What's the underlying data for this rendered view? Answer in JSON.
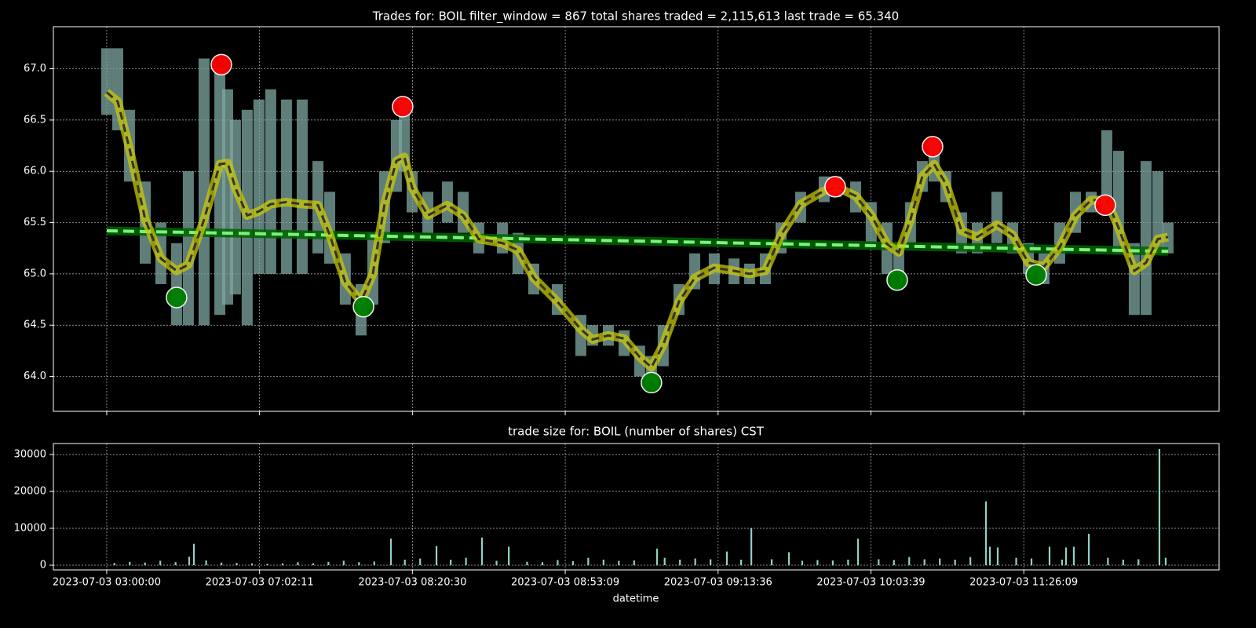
{
  "chart_data": [
    {
      "type": "line",
      "title": "Trades for: BOIL filter_window = 867 total shares traded = 2,115,613 last trade = 65.340",
      "xlim": [
        -349,
        7278
      ],
      "ylim": [
        63.66,
        67.41
      ],
      "yticks": [
        {
          "value": 64,
          "label": "64.0"
        },
        {
          "value": 64.5,
          "label": "64.5"
        },
        {
          "value": 65,
          "label": "65.0"
        },
        {
          "value": 65.5,
          "label": "65.5"
        },
        {
          "value": 66,
          "label": "66.0"
        },
        {
          "value": 66.5,
          "label": "66.5"
        },
        {
          "value": 67,
          "label": "67.0"
        }
      ],
      "grid": true,
      "sharex": true,
      "x": [
        0,
        72,
        149,
        252,
        354,
        457,
        534,
        637,
        740,
        791,
        842,
        919,
        996,
        1073,
        1176,
        1279,
        1382,
        1459,
        1561,
        1664,
        1741,
        1818,
        1895,
        1947,
        1998,
        2101,
        2229,
        2332,
        2434,
        2589,
        2691,
        2794,
        2948,
        3102,
        3179,
        3282,
        3385,
        3487,
        3564,
        3641,
        3744,
        3847,
        3975,
        4104,
        4206,
        4309,
        4412,
        4540,
        4694,
        4771,
        4900,
        5002,
        5105,
        5182,
        5259,
        5336,
        5413,
        5490,
        5593,
        5696,
        5824,
        5927,
        6030,
        6132,
        6235,
        6338,
        6441,
        6543,
        6620,
        6723,
        6800,
        6877,
        6944
      ],
      "trade_color": "#7fa8a2",
      "trade_low": [
        66.55,
        66.4,
        65.9,
        65.1,
        64.9,
        64.5,
        64.5,
        64.5,
        64.6,
        64.7,
        64.8,
        64.5,
        65.0,
        65.0,
        65.0,
        65.0,
        65.2,
        65.1,
        64.7,
        64.4,
        64.7,
        65.3,
        65.8,
        66.0,
        65.6,
        65.4,
        65.5,
        65.4,
        65.2,
        65.2,
        65.0,
        64.8,
        64.6,
        64.2,
        64.3,
        64.3,
        64.2,
        64.0,
        63.95,
        64.1,
        64.6,
        64.85,
        64.9,
        64.9,
        64.9,
        64.9,
        65.2,
        65.5,
        65.7,
        65.75,
        65.6,
        65.3,
        65.0,
        65.0,
        65.3,
        65.8,
        65.9,
        65.7,
        65.2,
        65.2,
        65.3,
        65.2,
        65.0,
        64.9,
        65.1,
        65.4,
        65.6,
        65.6,
        65.2,
        64.6,
        64.6,
        65.2,
        65.2
      ],
      "trade_high": [
        67.2,
        67.2,
        66.6,
        65.9,
        65.5,
        65.3,
        66.0,
        67.1,
        67.0,
        66.8,
        66.5,
        66.6,
        66.7,
        66.8,
        66.7,
        66.7,
        66.1,
        65.8,
        65.2,
        64.9,
        65.4,
        66.0,
        66.5,
        66.7,
        66.0,
        65.8,
        65.9,
        65.8,
        65.5,
        65.5,
        65.4,
        65.1,
        64.9,
        64.6,
        64.5,
        64.5,
        64.45,
        64.3,
        64.2,
        64.5,
        64.9,
        65.2,
        65.2,
        65.15,
        65.1,
        65.2,
        65.5,
        65.8,
        65.95,
        65.95,
        65.9,
        65.7,
        65.5,
        65.3,
        65.7,
        66.1,
        66.3,
        66.0,
        65.6,
        65.5,
        65.8,
        65.5,
        65.3,
        65.2,
        65.5,
        65.8,
        65.8,
        66.4,
        66.2,
        65.3,
        66.1,
        66.0,
        65.5
      ],
      "smooth_color": "#c8c80a",
      "smoothed": [
        66.77,
        66.68,
        66.22,
        65.53,
        65.15,
        65.03,
        65.09,
        65.53,
        66.07,
        66.08,
        65.84,
        65.57,
        65.61,
        65.68,
        65.7,
        65.68,
        65.67,
        65.38,
        64.92,
        64.73,
        65.0,
        65.68,
        66.1,
        66.14,
        65.84,
        65.57,
        65.67,
        65.57,
        65.34,
        65.3,
        65.23,
        64.96,
        64.73,
        64.46,
        64.36,
        64.4,
        64.37,
        64.19,
        64.09,
        64.31,
        64.73,
        64.96,
        65.06,
        65.03,
        65.0,
        65.03,
        65.38,
        65.68,
        65.81,
        65.85,
        65.76,
        65.57,
        65.29,
        65.21,
        65.53,
        65.95,
        66.07,
        65.88,
        65.42,
        65.36,
        65.48,
        65.38,
        65.11,
        65.07,
        65.26,
        65.57,
        65.72,
        65.72,
        65.45,
        65.03,
        65.11,
        65.34,
        65.36
      ],
      "trend": {
        "color": "#7ff07f",
        "x": [
          0,
          6944
        ],
        "values": [
          65.42,
          65.22
        ]
      },
      "peaks": {
        "color": "#ff0000",
        "x": [
          750,
          1936,
          4766,
          5403,
          6533
        ],
        "values": [
          67.04,
          66.63,
          65.85,
          66.24,
          65.67
        ]
      },
      "troughs": {
        "color": "#008000",
        "x": [
          457,
          1680,
          3564,
          5172,
          6081
        ],
        "values": [
          64.77,
          64.68,
          63.94,
          64.94,
          64.99
        ]
      }
    },
    {
      "type": "bar",
      "title": "trade size for: BOIL (number of shares) CST",
      "xlabel": "datetime",
      "xlim": [
        -349,
        7278
      ],
      "ylim": [
        -1277,
        32980
      ],
      "yticks": [
        0,
        10000,
        20000,
        30000
      ],
      "grid": true,
      "color": "#8dd3c7",
      "xticks": [
        {
          "value": 0,
          "label": "2023-07-03 03:00:00"
        },
        {
          "value": 1000,
          "label": "2023-07-03 07:02:11"
        },
        {
          "value": 2000,
          "label": "2023-07-03 08:20:30"
        },
        {
          "value": 3000,
          "label": "2023-07-03 08:53:09"
        },
        {
          "value": 4000,
          "label": "2023-07-03 09:13:36"
        },
        {
          "value": 5000,
          "label": "2023-07-03 10:03:39"
        },
        {
          "value": 6000,
          "label": "2023-07-03 11:26:09"
        }
      ],
      "x": [
        50,
        150,
        250,
        350,
        450,
        539,
        570,
        650,
        750,
        850,
        950,
        1050,
        1150,
        1250,
        1350,
        1450,
        1550,
        1650,
        1750,
        1859,
        1950,
        2050,
        2157,
        2250,
        2350,
        2455,
        2550,
        2630,
        2750,
        2850,
        2950,
        3050,
        3150,
        3250,
        3350,
        3450,
        3600,
        3650,
        3750,
        3850,
        3950,
        4057,
        4150,
        4217,
        4350,
        4463,
        4550,
        4650,
        4750,
        4850,
        4915,
        5050,
        5150,
        5250,
        5350,
        5450,
        5550,
        5650,
        5752,
        5778,
        5829,
        5950,
        6050,
        6168,
        6250,
        6276,
        6327,
        6425,
        6550,
        6650,
        6750,
        6887,
        6928
      ],
      "values": [
        600,
        900,
        700,
        1200,
        800,
        2300,
        5800,
        1300,
        700,
        600,
        500,
        400,
        500,
        800,
        500,
        900,
        1200,
        800,
        1000,
        7200,
        1500,
        1800,
        5200,
        1500,
        2000,
        7500,
        1200,
        5000,
        900,
        800,
        1400,
        1100,
        2000,
        1500,
        1200,
        1300,
        4500,
        2000,
        1500,
        1800,
        1600,
        3700,
        1500,
        10100,
        1600,
        3500,
        1200,
        1400,
        1300,
        1500,
        7200,
        1600,
        1400,
        2200,
        1600,
        1800,
        1500,
        2200,
        17300,
        5000,
        4800,
        2000,
        1800,
        5000,
        1500,
        4800,
        5000,
        8500,
        2000,
        1500,
        1600,
        31500,
        2000
      ]
    }
  ]
}
